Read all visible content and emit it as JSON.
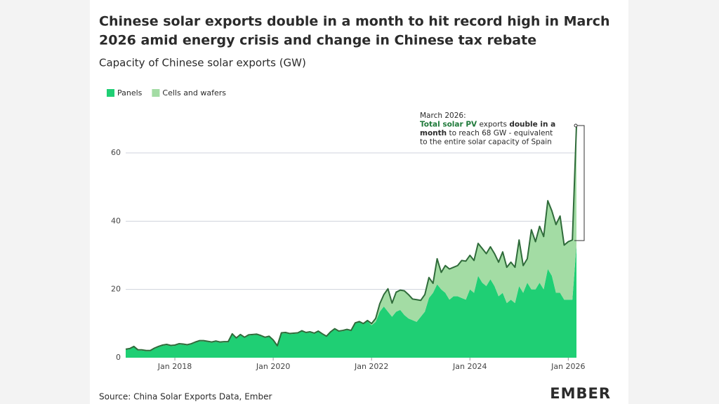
{
  "chart_data": {
    "type": "stacked_area",
    "title_lines": [
      "Chinese solar exports double in a month to hit record high in March",
      "2026 amid energy crisis and change in Chinese tax rebate"
    ],
    "subtitle": "Capacity of Chinese solar exports (GW)",
    "source": "Source: China Solar Exports Data, Ember",
    "brand": "EMBER",
    "legend": "top-left",
    "grid": true,
    "outline_color": "#2f6b3a",
    "ylim": [
      0,
      70
    ],
    "yticks": [
      0,
      20,
      40,
      60
    ],
    "x": [
      "2017-01",
      "2017-02",
      "2017-03",
      "2017-04",
      "2017-05",
      "2017-06",
      "2017-07",
      "2017-08",
      "2017-09",
      "2017-10",
      "2017-11",
      "2017-12",
      "2018-01",
      "2018-02",
      "2018-03",
      "2018-04",
      "2018-05",
      "2018-06",
      "2018-07",
      "2018-08",
      "2018-09",
      "2018-10",
      "2018-11",
      "2018-12",
      "2019-01",
      "2019-02",
      "2019-03",
      "2019-04",
      "2019-05",
      "2019-06",
      "2019-07",
      "2019-08",
      "2019-09",
      "2019-10",
      "2019-11",
      "2019-12",
      "2020-01",
      "2020-02",
      "2020-03",
      "2020-04",
      "2020-05",
      "2020-06",
      "2020-07",
      "2020-08",
      "2020-09",
      "2020-10",
      "2020-11",
      "2020-12",
      "2021-01",
      "2021-02",
      "2021-03",
      "2021-04",
      "2021-05",
      "2021-06",
      "2021-07",
      "2021-08",
      "2021-09",
      "2021-10",
      "2021-11",
      "2021-12",
      "2022-01",
      "2022-02",
      "2022-03",
      "2022-04",
      "2022-05",
      "2022-06",
      "2022-07",
      "2022-08",
      "2022-09",
      "2022-10",
      "2022-11",
      "2022-12",
      "2023-01",
      "2023-02",
      "2023-03",
      "2023-04",
      "2023-05",
      "2023-06",
      "2023-07",
      "2023-08",
      "2023-09",
      "2023-10",
      "2023-11",
      "2023-12",
      "2024-01",
      "2024-02",
      "2024-03",
      "2024-04",
      "2024-05",
      "2024-06",
      "2024-07",
      "2024-08",
      "2024-09",
      "2024-10",
      "2024-11",
      "2024-12",
      "2025-01",
      "2025-02",
      "2025-03",
      "2025-04",
      "2025-05",
      "2025-06",
      "2025-07",
      "2025-08",
      "2025-09",
      "2025-10",
      "2025-11",
      "2025-12",
      "2026-01",
      "2026-02",
      "2026-03"
    ],
    "xticks": [
      {
        "value": "2018-01",
        "label": "Jan 2018"
      },
      {
        "value": "2020-01",
        "label": "Jan 2020"
      },
      {
        "value": "2022-01",
        "label": "Jan 2022"
      },
      {
        "value": "2024-01",
        "label": "Jan 2024"
      },
      {
        "value": "2026-01",
        "label": "Jan 2026"
      }
    ],
    "series": [
      {
        "name": "Panels",
        "color": "#1fcf74",
        "values": [
          2.3,
          2.5,
          3.1,
          2.1,
          2.1,
          1.9,
          1.9,
          2.6,
          3.1,
          3.5,
          3.7,
          3.4,
          3.5,
          3.9,
          3.8,
          3.6,
          3.9,
          4.4,
          4.8,
          4.8,
          4.6,
          4.4,
          4.7,
          4.4,
          4.5,
          4.5,
          6.8,
          5.6,
          6.6,
          5.8,
          6.5,
          6.6,
          6.7,
          6.3,
          5.8,
          6.1,
          5.0,
          3.3,
          7.1,
          7.2,
          6.9,
          7.0,
          7.1,
          7.7,
          7.2,
          7.4,
          7.0,
          7.6,
          6.8,
          6.1,
          7.4,
          8.3,
          7.6,
          7.8,
          8.1,
          7.8,
          10.0,
          10.4,
          9.8,
          10.7,
          9.5,
          10.5,
          13.5,
          15,
          13.5,
          12,
          13.5,
          14,
          12.5,
          11.5,
          11,
          10.5,
          12,
          13.5,
          17.5,
          19,
          21.5,
          20,
          19,
          17,
          18,
          18,
          17.5,
          17,
          20,
          19,
          24,
          22,
          21,
          23,
          21,
          18,
          19,
          16,
          17,
          16,
          21,
          19,
          22,
          20,
          20,
          22,
          20,
          26,
          24,
          19,
          19,
          17,
          17,
          17,
          33
        ]
      },
      {
        "name": "Cells and wafers",
        "color": "#a3dca4",
        "values": [
          0.2,
          0.2,
          0.2,
          0.2,
          0.2,
          0.2,
          0.2,
          0.2,
          0.2,
          0.2,
          0.2,
          0.2,
          0.2,
          0.2,
          0.2,
          0.2,
          0.2,
          0.2,
          0.2,
          0.2,
          0.2,
          0.2,
          0.2,
          0.2,
          0.2,
          0.2,
          0.2,
          0.2,
          0.2,
          0.2,
          0.2,
          0.2,
          0.2,
          0.2,
          0.2,
          0.2,
          0.2,
          0.2,
          0.2,
          0.2,
          0.2,
          0.2,
          0.2,
          0.2,
          0.2,
          0.2,
          0.2,
          0.2,
          0.2,
          0.2,
          0.2,
          0.2,
          0.2,
          0.2,
          0.2,
          0.2,
          0.2,
          0.2,
          0.2,
          0.2,
          0.5,
          1.0,
          2.3,
          3.5,
          6.7,
          4.0,
          5.7,
          5.8,
          7.1,
          7.0,
          6.2,
          6.5,
          4.8,
          5.0,
          6.0,
          2.8,
          7.5,
          5.0,
          8.0,
          9.0,
          8.5,
          9.0,
          11.0,
          11.3,
          10,
          9.5,
          9.5,
          10,
          9.5,
          9.5,
          9.5,
          10,
          12,
          10.5,
          11,
          10.5,
          13.5,
          8,
          7,
          17.5,
          14,
          16.5,
          15.5,
          20,
          19,
          20,
          22.5,
          16,
          17,
          17.5,
          35
        ]
      }
    ],
    "annotation": {
      "lines": [
        [
          {
            "text": "March 2026:"
          }
        ],
        [
          {
            "text": "Total solar PV",
            "bold": true,
            "color": "#1f7a3a"
          },
          {
            "text": " exports "
          },
          {
            "text": "double in a",
            "bold": true
          }
        ],
        [
          {
            "text": "month",
            "bold": true
          },
          {
            "text": " to reach 68 GW - equivalent"
          }
        ],
        [
          {
            "text": "to the entire solar capacity of Spain"
          }
        ]
      ]
    }
  }
}
